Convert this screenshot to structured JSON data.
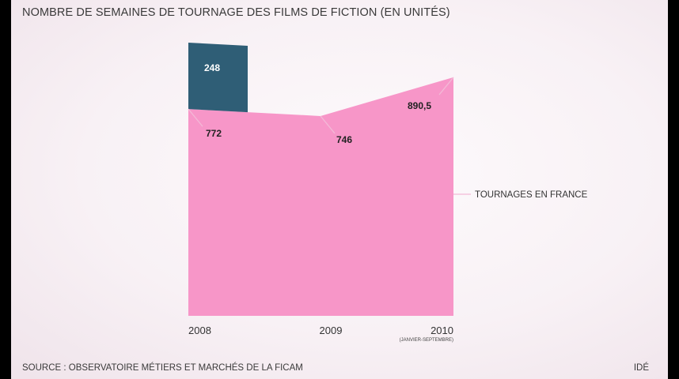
{
  "title": "NOMBRE DE SEMAINES DE TOURNAGE DES FILMS DE FICTION (EN UNITÉS)",
  "source": "SOURCE : OBSERVATOIRE MÉTIERS ET MARCHÉS DE LA FICAM",
  "brand": "IDÉ",
  "colors": {
    "pink": "#f796c8",
    "teal": "#2f5e76",
    "text": "#3a3a3a"
  },
  "chart_data": {
    "type": "area",
    "categories": [
      "2008",
      "2009",
      "2010"
    ],
    "category_notes": [
      "",
      "",
      "(JANVIER-SEPTEMBRE)"
    ],
    "series": [
      {
        "name": "TOURNAGES EN FRANCE",
        "values": [
          772,
          746,
          890.5
        ],
        "labels": [
          "772",
          "746",
          "890,5"
        ],
        "color": "#f796c8"
      },
      {
        "name": "",
        "values": [
          248,
          null,
          null
        ],
        "labels": [
          "248",
          "",
          ""
        ],
        "color": "#2f5e76"
      }
    ],
    "ylim": [
      0,
      1020
    ],
    "grid": false,
    "legend": "right"
  }
}
